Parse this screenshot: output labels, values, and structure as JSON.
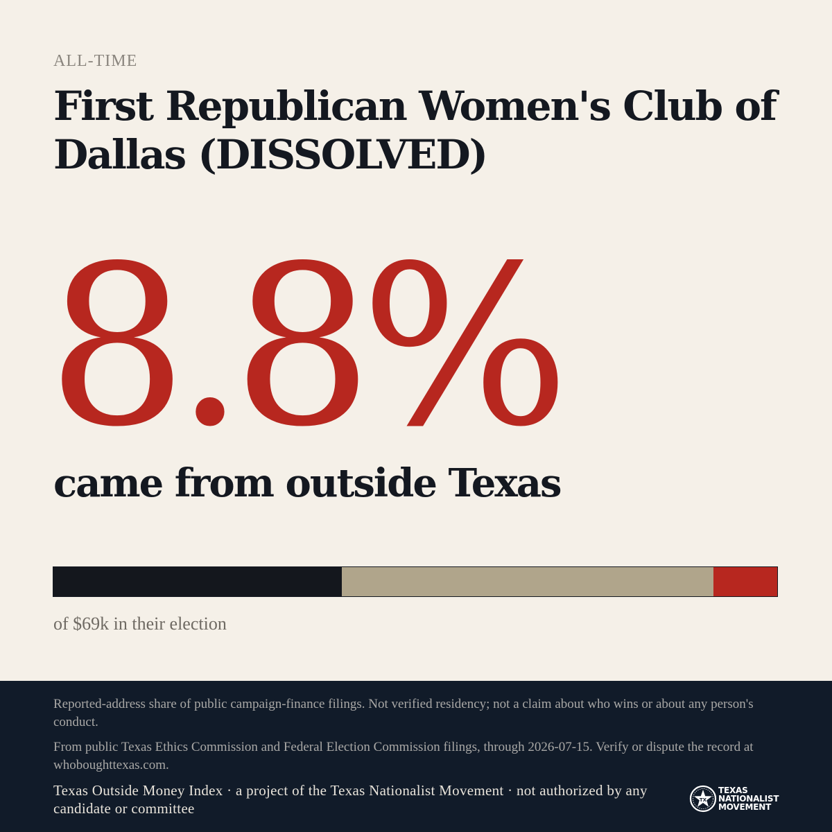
{
  "header": {
    "kicker": "ALL-TIME",
    "title": "First Republican Women's Club of Dallas (DISSOLVED)"
  },
  "headline": {
    "percent": "8.8%",
    "subline": "came from outside Texas"
  },
  "bar": {
    "segments": [
      {
        "share": 0.398,
        "color": "#14171d"
      },
      {
        "share": 0.514,
        "color": "#b0a58b"
      },
      {
        "share": 0.088,
        "color": "#b7271f"
      }
    ],
    "caption": "of $69k in their election"
  },
  "colors": {
    "background": "#f5f0e8",
    "accent": "#b7271f",
    "footer_bg": "#111b29"
  },
  "footer": {
    "note1": "Reported-address share of public campaign-finance filings. Not verified residency; not a claim about who wins or about any person's conduct.",
    "note2": "From public Texas Ethics Commission and Federal Election Commission filings, through 2026-07-15. Verify or dispute the record at whoboughttexas.com.",
    "credit": "Texas Outside Money Index · a project of the Texas Nationalist Movement · not authorized by any candidate or committee",
    "logo": {
      "icon": "star-seal-icon",
      "line1": "TEXAS",
      "line2": "NATIONALIST",
      "line3": "MOVEMENT"
    }
  }
}
